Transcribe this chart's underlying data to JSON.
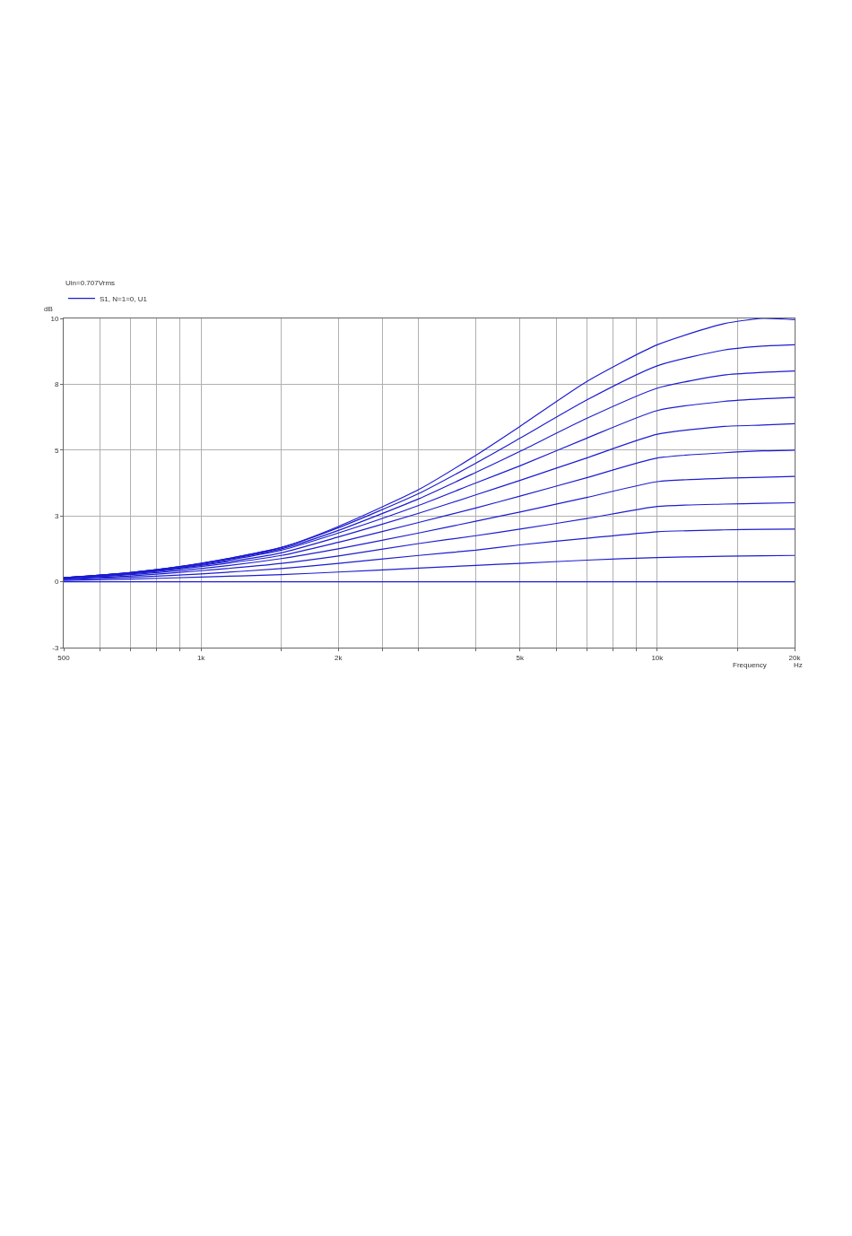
{
  "chart_data": {
    "type": "line",
    "xlabel": "Frequency",
    "ylabel": "dB",
    "legend_title": "Uin=0.707Vrms",
    "annotations": [
      "Hz"
    ],
    "log": "x",
    "grid": true,
    "legend": "top left",
    "line_style": "solid",
    "marker": "none",
    "x": [
      500,
      700,
      1000,
      1500,
      2000,
      3000,
      4000,
      5000,
      7000,
      10000,
      14000,
      17000,
      20000
    ],
    "xlim": [
      500,
      20000
    ],
    "xticks": [
      500,
      {
        "value": 600,
        "label": null
      },
      {
        "value": 700,
        "label": null
      },
      {
        "value": 800,
        "label": null
      },
      {
        "value": 900,
        "label": null
      },
      {
        "value": 1000,
        "label": "1k"
      },
      {
        "value": 1500,
        "label": null
      },
      {
        "value": 2000,
        "label": "2k"
      },
      {
        "value": 2500,
        "label": null
      },
      {
        "value": 3000,
        "label": null
      },
      {
        "value": 4000,
        "label": null
      },
      {
        "value": 5000,
        "label": "5k"
      },
      {
        "value": 6000,
        "label": null
      },
      {
        "value": 7000,
        "label": null
      },
      {
        "value": 8000,
        "label": null
      },
      {
        "value": 9000,
        "label": null
      },
      {
        "value": 10000,
        "label": "10k"
      },
      {
        "value": 15000,
        "label": null
      },
      {
        "value": 20000,
        "label": "20k"
      }
    ],
    "ylim": [
      -2.5,
      10
    ],
    "yticks": [
      {
        "value": -2.5,
        "label": "-3"
      },
      0,
      {
        "value": 2.5,
        "label": "3"
      },
      5,
      {
        "value": 7.5,
        "label": "8"
      },
      10
    ],
    "series": [
      {
        "name": "S1, N=1=0, U1",
        "color": "#1c1cd0",
        "values": [
          0.15,
          0.35,
          0.7,
          1.3,
          2.1,
          3.5,
          4.8,
          5.9,
          7.6,
          9.0,
          9.8,
          10.0,
          9.95
        ]
      },
      {
        "color": "#1c1cd0",
        "values": [
          0.15,
          0.35,
          0.7,
          1.3,
          2.05,
          3.35,
          4.5,
          5.45,
          6.9,
          8.2,
          8.8,
          8.95,
          9.0
        ]
      },
      {
        "color": "#1c1cd0",
        "values": [
          0.15,
          0.35,
          0.68,
          1.25,
          1.95,
          3.15,
          4.15,
          4.95,
          6.2,
          7.35,
          7.85,
          7.95,
          8.0
        ]
      },
      {
        "color": "#1c1cd0",
        "values": [
          0.15,
          0.33,
          0.65,
          1.2,
          1.85,
          2.9,
          3.75,
          4.4,
          5.45,
          6.5,
          6.85,
          6.95,
          7.0
        ]
      },
      {
        "color": "#1c1cd0",
        "values": [
          0.14,
          0.32,
          0.62,
          1.1,
          1.7,
          2.6,
          3.3,
          3.85,
          4.7,
          5.6,
          5.9,
          5.95,
          6.0
        ]
      },
      {
        "color": "#1c1cd0",
        "values": [
          0.13,
          0.3,
          0.58,
          1.0,
          1.5,
          2.25,
          2.8,
          3.25,
          3.95,
          4.7,
          4.9,
          4.97,
          5.0
        ]
      },
      {
        "color": "#1c1cd0",
        "values": [
          0.12,
          0.27,
          0.5,
          0.88,
          1.25,
          1.85,
          2.3,
          2.65,
          3.2,
          3.8,
          3.93,
          3.97,
          4.0
        ]
      },
      {
        "color": "#1c1cd0",
        "values": [
          0.1,
          0.22,
          0.42,
          0.7,
          0.98,
          1.45,
          1.75,
          2.0,
          2.4,
          2.86,
          2.95,
          2.98,
          3.0
        ]
      },
      {
        "color": "#1c1cd0",
        "values": [
          0.08,
          0.17,
          0.3,
          0.5,
          0.7,
          1.0,
          1.2,
          1.4,
          1.65,
          1.9,
          1.97,
          1.99,
          2.0
        ]
      },
      {
        "color": "#1c1cd0",
        "values": [
          0.05,
          0.1,
          0.18,
          0.27,
          0.37,
          0.52,
          0.62,
          0.7,
          0.82,
          0.92,
          0.97,
          0.99,
          1.0
        ]
      },
      {
        "color": "#1c1cd0",
        "values": [
          0,
          0,
          0,
          0,
          0,
          0,
          0,
          0,
          0,
          0,
          0,
          0,
          0
        ]
      }
    ]
  }
}
